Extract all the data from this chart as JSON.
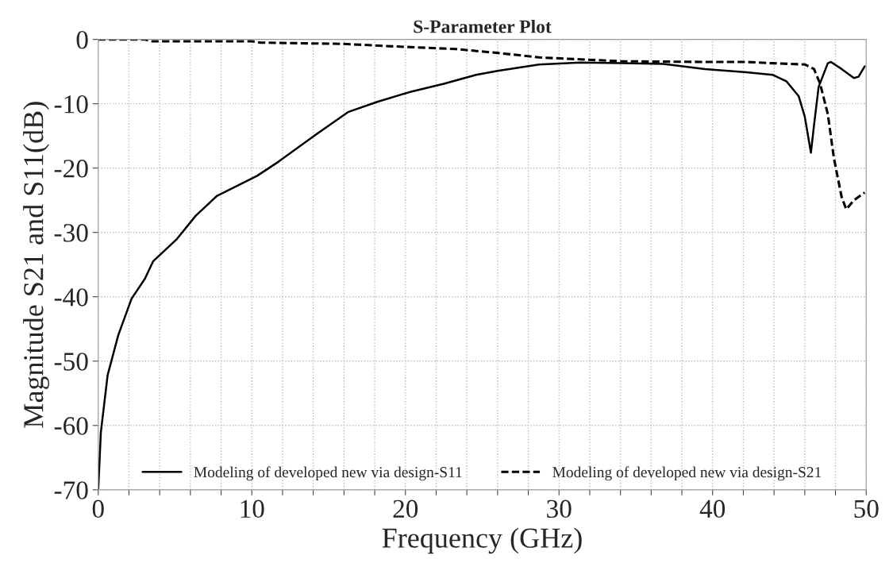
{
  "chart_data": {
    "type": "line",
    "title": "S-Parameter Plot",
    "xlabel": "Frequency (GHz)",
    "ylabel": "Magnitude S21 and S11(dB)",
    "series": [
      {
        "name": "Modeling of developed new via design-S11",
        "color": "#000000",
        "line_style": "solid",
        "x": [
          0,
          0.17,
          0.61,
          1.3,
          2.17,
          3.04,
          3.57,
          5.13,
          6.35,
          7.74,
          10.35,
          11.74,
          14.17,
          16.26,
          18.17,
          20.26,
          22.5,
          24.6,
          26.0,
          28.7,
          31.4,
          34.1,
          36.8,
          39.5,
          42.2,
          43.9,
          44.8,
          45.6,
          46.0,
          46.4,
          46.6,
          46.9,
          47.5,
          47.7,
          48.4,
          49.2,
          49.5,
          49.9
        ],
        "values": [
          -70,
          -61.1,
          -52.2,
          -46.0,
          -40.3,
          -37.2,
          -34.5,
          -31.0,
          -27.4,
          -24.3,
          -21.2,
          -19.0,
          -14.8,
          -11.3,
          -9.7,
          -8.2,
          -6.9,
          -5.5,
          -4.9,
          -3.9,
          -3.6,
          -3.7,
          -3.8,
          -4.6,
          -5.1,
          -5.5,
          -6.5,
          -8.8,
          -12.0,
          -17.6,
          -13.4,
          -7.4,
          -3.7,
          -3.5,
          -4.6,
          -6.0,
          -5.8,
          -4.2
        ]
      },
      {
        "name": "Modeling of developed new via design-S21",
        "color": "#000000",
        "line_style": "dashed",
        "x": [
          0,
          3.0,
          3.5,
          10.0,
          10.6,
          16.0,
          19.4,
          23.3,
          26.0,
          28.7,
          31.4,
          34.1,
          39.5,
          42.2,
          43.9,
          46.0,
          46.6,
          47.0,
          47.5,
          47.9,
          48.4,
          48.7,
          49.2,
          49.9
        ],
        "values": [
          0,
          0,
          -0.3,
          -0.3,
          -0.5,
          -0.7,
          -1.1,
          -1.5,
          -2.1,
          -2.8,
          -3.1,
          -3.4,
          -3.5,
          -3.5,
          -3.7,
          -3.9,
          -4.6,
          -6.9,
          -11.6,
          -18.5,
          -24.5,
          -26.4,
          -25.0,
          -23.8
        ]
      }
    ],
    "xlim": [
      0,
      50
    ],
    "ylim": [
      -70,
      0
    ],
    "xticks": [
      0,
      {
        "value": 2,
        "label": null
      },
      {
        "value": 4,
        "label": null
      },
      {
        "value": 6,
        "label": null
      },
      {
        "value": 8,
        "label": null
      },
      10,
      {
        "value": 12,
        "label": null
      },
      {
        "value": 14,
        "label": null
      },
      {
        "value": 16,
        "label": null
      },
      {
        "value": 18,
        "label": null
      },
      20,
      {
        "value": 22,
        "label": null
      },
      {
        "value": 24,
        "label": null
      },
      {
        "value": 26,
        "label": null
      },
      {
        "value": 28,
        "label": null
      },
      30,
      {
        "value": 32,
        "label": null
      },
      {
        "value": 34,
        "label": null
      },
      {
        "value": 36,
        "label": null
      },
      {
        "value": 38,
        "label": null
      },
      40,
      {
        "value": 42,
        "label": null
      },
      {
        "value": 44,
        "label": null
      },
      {
        "value": 46,
        "label": null
      },
      {
        "value": 48,
        "label": null
      },
      50
    ],
    "yticks": [
      -70,
      -60,
      -50,
      -40,
      -30,
      -20,
      -10,
      0
    ],
    "grid": true,
    "legend": "bottom",
    "marker": "none"
  }
}
